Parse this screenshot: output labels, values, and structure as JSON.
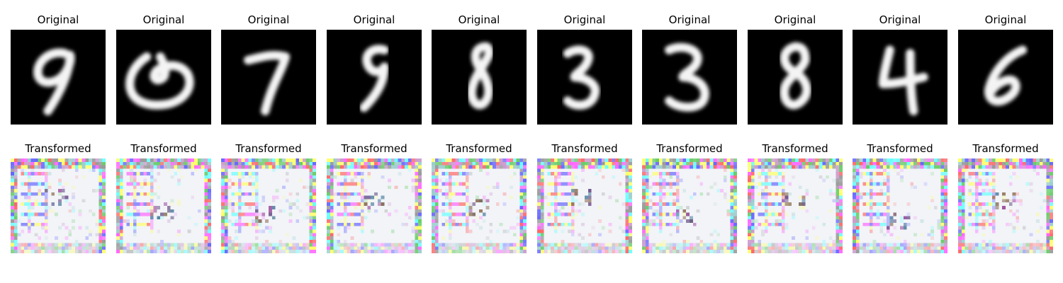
{
  "figure": {
    "rows": [
      {
        "title": "Original",
        "kind": "digit",
        "panels": [
          {
            "digit": "9"
          },
          {
            "digit": "0"
          },
          {
            "digit": "7"
          },
          {
            "digit": "9"
          },
          {
            "digit": "8"
          },
          {
            "digit": "3"
          },
          {
            "digit": "3"
          },
          {
            "digit": "8"
          },
          {
            "digit": "4"
          },
          {
            "digit": "6"
          }
        ]
      },
      {
        "title": "Transformed",
        "kind": "noise",
        "panels": [
          {
            "seed": 11
          },
          {
            "seed": 23
          },
          {
            "seed": 37
          },
          {
            "seed": 41
          },
          {
            "seed": 53
          },
          {
            "seed": 67
          },
          {
            "seed": 71
          },
          {
            "seed": 83
          },
          {
            "seed": 97
          },
          {
            "seed": 101
          }
        ]
      }
    ]
  }
}
